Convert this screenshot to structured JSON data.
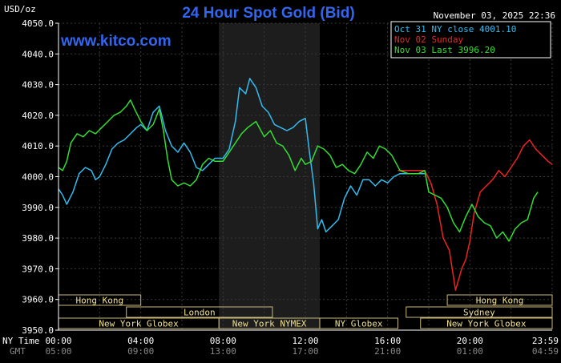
{
  "chart_data": {
    "type": "line",
    "title": "24 Hour Spot Gold (Bid)",
    "unit_label": "USD/oz",
    "timestamp": "November 03, 2025 22:36",
    "watermark": "www.kitco.com",
    "ylim": [
      3950,
      4050
    ],
    "yticks": [
      "4050.0",
      "4040.0",
      "4030.0",
      "4020.0",
      "4010.0",
      "4000.0",
      "3990.0",
      "3980.0",
      "3970.0",
      "3960.0",
      "3950.0"
    ],
    "xlim": [
      0,
      24
    ],
    "time_rows": {
      "ny": {
        "label": "NY Time",
        "ticks": [
          "00:00",
          "04:00",
          "08:00",
          "12:00",
          "16:00",
          "20:00",
          "23:59"
        ]
      },
      "gmt": {
        "label": "GMT",
        "ticks": [
          "05:00",
          "09:00",
          "13:00",
          "17:00",
          "21:00",
          "01:00",
          "04:59"
        ]
      }
    },
    "shaded_range": [
      7.8,
      12.7
    ],
    "sessions": [
      {
        "name": "Hong Kong",
        "start": 0,
        "end": 4.0
      },
      {
        "name": "London",
        "start": 3.3,
        "end": 10.4
      },
      {
        "name": "New York Globex",
        "start": 0,
        "end": 7.8
      },
      {
        "name": "New York NYMEX",
        "start": 7.8,
        "end": 12.7
      },
      {
        "name": "NY Globex",
        "start": 12.7,
        "end": 16.5
      },
      {
        "name": "Hong Kong",
        "start": 18.9,
        "end": 24
      },
      {
        "name": "Sydney",
        "start": 16.9,
        "end": 24
      },
      {
        "name": "New York Globex",
        "start": 17.6,
        "end": 24
      }
    ],
    "series": [
      {
        "name": "Oct 31 NY close 4001.10",
        "color": "#33bbee",
        "points": [
          [
            0.0,
            3996
          ],
          [
            0.2,
            3994
          ],
          [
            0.4,
            3991
          ],
          [
            0.7,
            3995
          ],
          [
            1.0,
            4001
          ],
          [
            1.3,
            4003
          ],
          [
            1.6,
            4002
          ],
          [
            1.8,
            3999
          ],
          [
            2.0,
            4000
          ],
          [
            2.3,
            4004
          ],
          [
            2.6,
            4009
          ],
          [
            2.9,
            4011
          ],
          [
            3.2,
            4012
          ],
          [
            3.5,
            4014
          ],
          [
            3.8,
            4016
          ],
          [
            4.0,
            4017
          ],
          [
            4.3,
            4015
          ],
          [
            4.6,
            4021
          ],
          [
            4.9,
            4023
          ],
          [
            5.2,
            4015
          ],
          [
            5.5,
            4010
          ],
          [
            5.8,
            4008
          ],
          [
            6.1,
            4011
          ],
          [
            6.4,
            4008
          ],
          [
            6.7,
            4003
          ],
          [
            7.0,
            4002
          ],
          [
            7.3,
            4004
          ],
          [
            7.6,
            4006
          ],
          [
            8.0,
            4006
          ],
          [
            8.3,
            4009
          ],
          [
            8.6,
            4018
          ],
          [
            8.8,
            4029
          ],
          [
            9.1,
            4027
          ],
          [
            9.3,
            4032
          ],
          [
            9.6,
            4029
          ],
          [
            9.9,
            4023
          ],
          [
            10.2,
            4021
          ],
          [
            10.5,
            4017
          ],
          [
            10.8,
            4016
          ],
          [
            11.1,
            4015
          ],
          [
            11.4,
            4016
          ],
          [
            11.7,
            4018
          ],
          [
            12.0,
            4019
          ],
          [
            12.2,
            4008
          ],
          [
            12.4,
            3998
          ],
          [
            12.6,
            3983
          ],
          [
            12.8,
            3986
          ],
          [
            13.0,
            3982
          ],
          [
            13.3,
            3984
          ],
          [
            13.6,
            3986
          ],
          [
            13.9,
            3993
          ],
          [
            14.2,
            3997
          ],
          [
            14.5,
            3994
          ],
          [
            14.8,
            3999
          ],
          [
            15.1,
            3999
          ],
          [
            15.4,
            3997
          ],
          [
            15.7,
            3999
          ],
          [
            16.0,
            3998
          ],
          [
            16.3,
            4000
          ],
          [
            16.6,
            4001
          ],
          [
            17.0,
            4001
          ],
          [
            17.4,
            4001
          ],
          [
            17.8,
            4001
          ]
        ]
      },
      {
        "name": "Nov 02 Sunday",
        "color": "#ee2222",
        "points": [
          [
            16.5,
            4002
          ],
          [
            17.0,
            4002
          ],
          [
            17.5,
            4002
          ],
          [
            17.8,
            4002
          ],
          [
            18.1,
            3998
          ],
          [
            18.4,
            3991
          ],
          [
            18.7,
            3980
          ],
          [
            19.0,
            3976
          ],
          [
            19.3,
            3963
          ],
          [
            19.6,
            3970
          ],
          [
            19.8,
            3973
          ],
          [
            20.0,
            3979
          ],
          [
            20.2,
            3988
          ],
          [
            20.5,
            3995
          ],
          [
            20.8,
            3997
          ],
          [
            21.1,
            3999
          ],
          [
            21.4,
            4002
          ],
          [
            21.7,
            4000
          ],
          [
            22.0,
            4003
          ],
          [
            22.3,
            4006
          ],
          [
            22.6,
            4010
          ],
          [
            22.9,
            4012
          ],
          [
            23.2,
            4009
          ],
          [
            23.5,
            4007
          ],
          [
            23.8,
            4005
          ],
          [
            24.0,
            4004
          ]
        ]
      },
      {
        "name": "Nov 03 Last 3996.20",
        "color": "#33dd33",
        "points": [
          [
            0.0,
            4003
          ],
          [
            0.2,
            4002
          ],
          [
            0.4,
            4005
          ],
          [
            0.6,
            4011
          ],
          [
            0.9,
            4014
          ],
          [
            1.2,
            4013
          ],
          [
            1.5,
            4015
          ],
          [
            1.8,
            4014
          ],
          [
            2.1,
            4016
          ],
          [
            2.4,
            4018
          ],
          [
            2.7,
            4020
          ],
          [
            3.0,
            4021
          ],
          [
            3.3,
            4023
          ],
          [
            3.5,
            4025
          ],
          [
            3.7,
            4022
          ],
          [
            4.0,
            4018
          ],
          [
            4.3,
            4015
          ],
          [
            4.6,
            4017
          ],
          [
            4.9,
            4022
          ],
          [
            5.1,
            4015
          ],
          [
            5.3,
            4006
          ],
          [
            5.5,
            3999
          ],
          [
            5.8,
            3997
          ],
          [
            6.1,
            3998
          ],
          [
            6.4,
            3997
          ],
          [
            6.7,
            3999
          ],
          [
            7.0,
            4004
          ],
          [
            7.3,
            4006
          ],
          [
            7.6,
            4005
          ],
          [
            8.0,
            4005
          ],
          [
            8.3,
            4008
          ],
          [
            8.6,
            4011
          ],
          [
            8.9,
            4014
          ],
          [
            9.2,
            4016
          ],
          [
            9.6,
            4018
          ],
          [
            10.0,
            4013
          ],
          [
            10.3,
            4015
          ],
          [
            10.6,
            4011
          ],
          [
            10.9,
            4010
          ],
          [
            11.2,
            4007
          ],
          [
            11.5,
            4002
          ],
          [
            11.8,
            4006
          ],
          [
            12.0,
            4004
          ],
          [
            12.3,
            4005
          ],
          [
            12.6,
            4010
          ],
          [
            12.9,
            4009
          ],
          [
            13.2,
            4007
          ],
          [
            13.5,
            4003
          ],
          [
            13.8,
            4004
          ],
          [
            14.1,
            4002
          ],
          [
            14.4,
            4001
          ],
          [
            14.7,
            4004
          ],
          [
            15.0,
            4008
          ],
          [
            15.3,
            4006
          ],
          [
            15.6,
            4010
          ],
          [
            15.9,
            4009
          ],
          [
            16.2,
            4007
          ],
          [
            16.6,
            4002
          ],
          [
            17.0,
            4001
          ],
          [
            17.5,
            4001
          ],
          [
            17.8,
            4002
          ],
          [
            18.0,
            3995
          ],
          [
            18.3,
            3994
          ],
          [
            18.6,
            3993
          ],
          [
            18.9,
            3990
          ],
          [
            19.2,
            3985
          ],
          [
            19.5,
            3982
          ],
          [
            19.8,
            3987
          ],
          [
            20.1,
            3991
          ],
          [
            20.4,
            3987
          ],
          [
            20.7,
            3985
          ],
          [
            21.0,
            3984
          ],
          [
            21.3,
            3980
          ],
          [
            21.6,
            3982
          ],
          [
            21.9,
            3979
          ],
          [
            22.2,
            3983
          ],
          [
            22.5,
            3985
          ],
          [
            22.8,
            3986
          ],
          [
            23.1,
            3993
          ],
          [
            23.3,
            3995
          ]
        ]
      }
    ]
  }
}
